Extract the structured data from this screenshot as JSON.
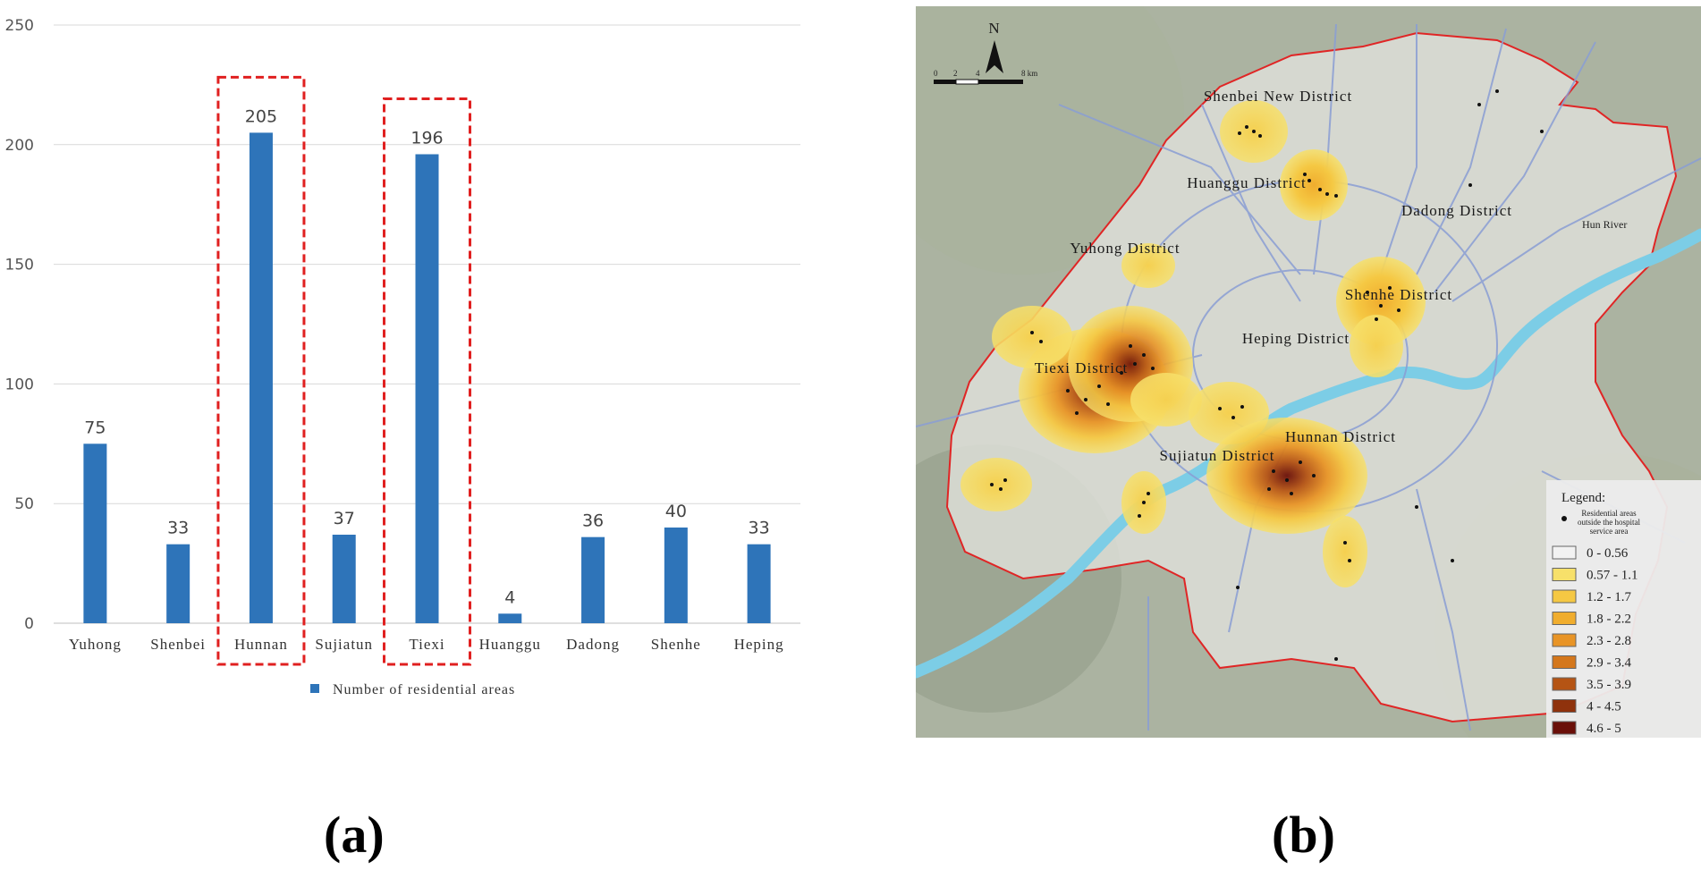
{
  "chart_data": {
    "type": "bar",
    "categories": [
      "Yuhong",
      "Shenbei",
      "Hunnan",
      "Sujiatun",
      "Tiexi",
      "Huanggu",
      "Dadong",
      "Shenhe",
      "Heping"
    ],
    "series": [
      {
        "name": "Number of residential areas",
        "values": [
          75,
          33,
          205,
          37,
          196,
          4,
          36,
          40,
          33
        ]
      }
    ],
    "ylim": [
      0,
      250
    ],
    "yticks": [
      0,
      50,
      100,
      150,
      200,
      250
    ],
    "highlighted": [
      "Hunnan",
      "Tiexi"
    ],
    "bar_color": "#2e74b9",
    "highlight_color": "#e02020",
    "grid": true,
    "legend_position": "bottom-center"
  },
  "panel_labels": {
    "a": "(a)",
    "b": "(b)"
  },
  "map": {
    "north_label": "N",
    "scale_labels": [
      "0",
      "2",
      "4",
      "8 km"
    ],
    "districts": [
      {
        "label": "Shenbei New District"
      },
      {
        "label": "Huanggu District"
      },
      {
        "label": "Dadong District"
      },
      {
        "label": "Yuhong District"
      },
      {
        "label": "Shenhe District"
      },
      {
        "label": "Heping District"
      },
      {
        "label": "Tiexi District"
      },
      {
        "label": "Hunnan District"
      },
      {
        "label": "Sujiatun District"
      }
    ],
    "river_label": "Hun River",
    "legend": {
      "title": "Legend:",
      "point_label_lines": [
        "Residential areas",
        "outside the hospital",
        "service area"
      ],
      "classes": [
        {
          "label": "0 - 0.56",
          "color": "#f2f2f2"
        },
        {
          "label": "0.57 - 1.1",
          "color": "#f7e06a"
        },
        {
          "label": "1.2 - 1.7",
          "color": "#f5c843"
        },
        {
          "label": "1.8 - 2.2",
          "color": "#f0ad2e"
        },
        {
          "label": "2.3 - 2.8",
          "color": "#e89426"
        },
        {
          "label": "2.9 - 3.4",
          "color": "#d4771c"
        },
        {
          "label": "3.5 - 3.9",
          "color": "#b55414"
        },
        {
          "label": "4 - 4.5",
          "color": "#8f320c"
        },
        {
          "label": "4.6 - 5",
          "color": "#6a0f08"
        }
      ]
    }
  }
}
